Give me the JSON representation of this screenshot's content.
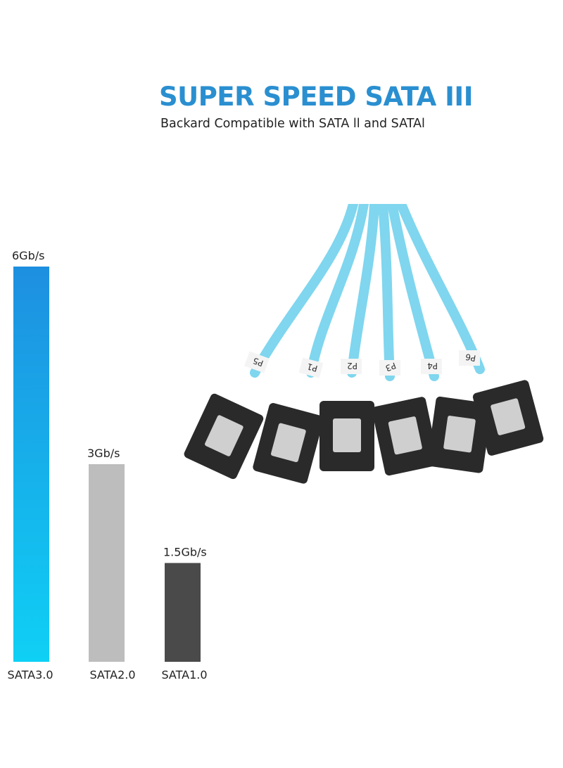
{
  "header": {
    "title": "SUPER SPEED SATA III",
    "subtitle": "Backard Compatible with SATA ll and SATAl"
  },
  "product_image": {
    "port_labels": [
      "P5",
      "P1",
      "P2",
      "P3",
      "P4",
      "P6"
    ],
    "cable_color": "#7fd6ee",
    "connector_color": "#2a2a2a"
  },
  "chart_data": {
    "type": "bar",
    "categories": [
      "SATA3.0",
      "SATA2.0",
      "SATA1.0"
    ],
    "values": [
      6,
      3,
      1.5
    ],
    "data_labels": [
      "6Gb/s",
      "3Gb/s",
      "1.5Gb/s"
    ],
    "title": "",
    "xlabel": "",
    "ylabel": "",
    "ylim": [
      0,
      6
    ],
    "grid": false,
    "colors": [
      "#1e8fe0",
      "#bdbdbd",
      "#4a4a4a"
    ],
    "gradient_bottom": "#0fd0f5"
  }
}
